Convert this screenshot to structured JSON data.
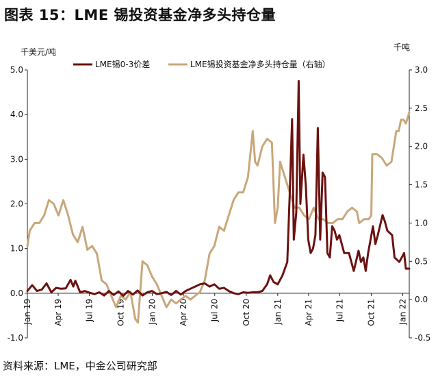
{
  "figure": {
    "title": "图表 15：LME 锡投资基金净多头持仓量",
    "source": "资料来源：LME，中金公司研究部"
  },
  "chart_data": {
    "type": "line",
    "left_unit": "千美元/吨",
    "right_unit": "千吨",
    "left_ylim": [
      -1.0,
      5.0
    ],
    "right_ylim": [
      -0.5,
      3.0
    ],
    "left_ticks": [
      "-1.0",
      "0.0",
      "1.0",
      "2.0",
      "3.0",
      "4.0",
      "5.0"
    ],
    "right_ticks": [
      "-0.5",
      "0.0",
      "0.5",
      "1.0",
      "1.5",
      "2.0",
      "2.5",
      "3.0"
    ],
    "x_ticks": [
      "Jan 19",
      "Apr 19",
      "Jul 19",
      "Oct 19",
      "Jan 20",
      "Apr 20",
      "Jul 20",
      "Oct 20",
      "Jan 21",
      "Apr 21",
      "Jul 21",
      "Oct 21",
      "Jan 22"
    ],
    "x_range": [
      "2019-01-01",
      "2022-01-20"
    ],
    "legend_position": "top",
    "series": [
      {
        "name": "LME锡0-3价差",
        "axis": "left",
        "color": "#6b1210",
        "points": [
          [
            "2019-01-01",
            0.05
          ],
          [
            "2019-01-15",
            0.18
          ],
          [
            "2019-01-29",
            0.05
          ],
          [
            "2019-02-12",
            0.08
          ],
          [
            "2019-02-26",
            0.22
          ],
          [
            "2019-03-12",
            0.02
          ],
          [
            "2019-03-26",
            0.12
          ],
          [
            "2019-04-09",
            0.1
          ],
          [
            "2019-04-23",
            0.11
          ],
          [
            "2019-05-07",
            0.3
          ],
          [
            "2019-05-15",
            0.15
          ],
          [
            "2019-05-21",
            0.28
          ],
          [
            "2019-06-04",
            0.02
          ],
          [
            "2019-06-18",
            0.05
          ],
          [
            "2019-07-02",
            0.01
          ],
          [
            "2019-07-16",
            -0.02
          ],
          [
            "2019-07-30",
            0.02
          ],
          [
            "2019-08-13",
            -0.05
          ],
          [
            "2019-08-27",
            0.05
          ],
          [
            "2019-09-10",
            -0.04
          ],
          [
            "2019-09-24",
            0.04
          ],
          [
            "2019-10-08",
            -0.06
          ],
          [
            "2019-10-22",
            0.05
          ],
          [
            "2019-11-05",
            -0.03
          ],
          [
            "2019-11-19",
            0.06
          ],
          [
            "2019-12-03",
            -0.05
          ],
          [
            "2019-12-17",
            0.02
          ],
          [
            "2019-12-31",
            0.05
          ],
          [
            "2020-01-14",
            -0.02
          ],
          [
            "2020-01-28",
            0.0
          ],
          [
            "2020-02-11",
            0.03
          ],
          [
            "2020-02-25",
            -0.04
          ],
          [
            "2020-03-10",
            0.05
          ],
          [
            "2020-03-24",
            -0.03
          ],
          [
            "2020-04-07",
            0.05
          ],
          [
            "2020-04-21",
            0.1
          ],
          [
            "2020-05-05",
            0.15
          ],
          [
            "2020-05-19",
            0.2
          ],
          [
            "2020-06-02",
            0.22
          ],
          [
            "2020-06-16",
            0.15
          ],
          [
            "2020-06-30",
            0.2
          ],
          [
            "2020-07-14",
            0.1
          ],
          [
            "2020-07-28",
            0.12
          ],
          [
            "2020-08-11",
            0.05
          ],
          [
            "2020-08-25",
            0.0
          ],
          [
            "2020-09-08",
            -0.02
          ],
          [
            "2020-09-22",
            0.02
          ],
          [
            "2020-10-06",
            0.01
          ],
          [
            "2020-10-20",
            0.02
          ],
          [
            "2020-11-03",
            0.02
          ],
          [
            "2020-11-17",
            0.05
          ],
          [
            "2020-12-01",
            0.2
          ],
          [
            "2020-12-10",
            0.4
          ],
          [
            "2020-12-20",
            0.25
          ],
          [
            "2021-01-01",
            0.2
          ],
          [
            "2021-01-15",
            0.4
          ],
          [
            "2021-01-29",
            0.7
          ],
          [
            "2021-02-05",
            2.2
          ],
          [
            "2021-02-12",
            3.9
          ],
          [
            "2021-02-17",
            1.2
          ],
          [
            "2021-02-24",
            1.8
          ],
          [
            "2021-03-03",
            4.75
          ],
          [
            "2021-03-08",
            2.0
          ],
          [
            "2021-03-17",
            3.1
          ],
          [
            "2021-03-24",
            2.4
          ],
          [
            "2021-03-31",
            1.2
          ],
          [
            "2021-04-07",
            0.9
          ],
          [
            "2021-04-14",
            1.0
          ],
          [
            "2021-04-21",
            1.3
          ],
          [
            "2021-04-28",
            3.7
          ],
          [
            "2021-05-05",
            1.2
          ],
          [
            "2021-05-12",
            2.7
          ],
          [
            "2021-05-19",
            2.6
          ],
          [
            "2021-05-26",
            0.9
          ],
          [
            "2021-06-02",
            0.8
          ],
          [
            "2021-06-09",
            1.5
          ],
          [
            "2021-06-16",
            1.4
          ],
          [
            "2021-06-23",
            1.2
          ],
          [
            "2021-06-30",
            1.3
          ],
          [
            "2021-07-14",
            0.9
          ],
          [
            "2021-07-28",
            0.9
          ],
          [
            "2021-08-11",
            0.5
          ],
          [
            "2021-08-25",
            0.95
          ],
          [
            "2021-09-01",
            0.7
          ],
          [
            "2021-09-08",
            0.8
          ],
          [
            "2021-09-15",
            0.5
          ],
          [
            "2021-09-22",
            0.9
          ],
          [
            "2021-10-06",
            1.5
          ],
          [
            "2021-10-13",
            1.1
          ],
          [
            "2021-10-20",
            1.3
          ],
          [
            "2021-11-03",
            1.75
          ],
          [
            "2021-11-10",
            1.6
          ],
          [
            "2021-11-17",
            1.4
          ],
          [
            "2021-12-01",
            1.3
          ],
          [
            "2021-12-08",
            0.8
          ],
          [
            "2021-12-22",
            0.7
          ],
          [
            "2022-01-05",
            0.9
          ],
          [
            "2022-01-10",
            0.55
          ],
          [
            "2022-01-20",
            0.55
          ]
        ]
      },
      {
        "name": "LME锡投资基金净多头持仓量（右轴）",
        "axis": "right",
        "color": "#c9a77a",
        "points": [
          [
            "2019-01-01",
            0.7
          ],
          [
            "2019-01-08",
            0.9
          ],
          [
            "2019-01-22",
            1.0
          ],
          [
            "2019-02-05",
            1.0
          ],
          [
            "2019-02-19",
            1.1
          ],
          [
            "2019-03-05",
            1.3
          ],
          [
            "2019-03-19",
            1.25
          ],
          [
            "2019-04-02",
            1.1
          ],
          [
            "2019-04-16",
            1.3
          ],
          [
            "2019-04-30",
            1.1
          ],
          [
            "2019-05-14",
            0.85
          ],
          [
            "2019-05-28",
            0.75
          ],
          [
            "2019-06-11",
            0.95
          ],
          [
            "2019-06-25",
            0.65
          ],
          [
            "2019-07-09",
            0.7
          ],
          [
            "2019-07-23",
            0.6
          ],
          [
            "2019-08-06",
            0.25
          ],
          [
            "2019-08-20",
            0.2
          ],
          [
            "2019-09-03",
            0.05
          ],
          [
            "2019-09-17",
            -0.1
          ],
          [
            "2019-10-01",
            0.05
          ],
          [
            "2019-10-15",
            0.0
          ],
          [
            "2019-10-29",
            0.1
          ],
          [
            "2019-11-12",
            -0.25
          ],
          [
            "2019-11-20",
            -0.3
          ],
          [
            "2019-12-03",
            0.5
          ],
          [
            "2019-12-17",
            0.45
          ],
          [
            "2019-12-31",
            0.3
          ],
          [
            "2020-01-14",
            0.2
          ],
          [
            "2020-01-28",
            0.05
          ],
          [
            "2020-02-11",
            -0.1
          ],
          [
            "2020-02-25",
            0.0
          ],
          [
            "2020-03-10",
            -0.05
          ],
          [
            "2020-03-24",
            0.0
          ],
          [
            "2020-04-07",
            0.05
          ],
          [
            "2020-04-21",
            0.0
          ],
          [
            "2020-05-05",
            0.05
          ],
          [
            "2020-05-19",
            0.1
          ],
          [
            "2020-06-02",
            0.25
          ],
          [
            "2020-06-16",
            0.6
          ],
          [
            "2020-06-30",
            0.7
          ],
          [
            "2020-07-14",
            0.95
          ],
          [
            "2020-07-28",
            0.9
          ],
          [
            "2020-08-11",
            1.1
          ],
          [
            "2020-08-25",
            1.3
          ],
          [
            "2020-09-08",
            1.4
          ],
          [
            "2020-09-22",
            1.4
          ],
          [
            "2020-10-06",
            1.6
          ],
          [
            "2020-10-20",
            2.2
          ],
          [
            "2020-10-27",
            1.8
          ],
          [
            "2020-11-03",
            1.75
          ],
          [
            "2020-11-17",
            2.0
          ],
          [
            "2020-12-01",
            2.1
          ],
          [
            "2020-12-15",
            2.05
          ],
          [
            "2020-12-24",
            1.0
          ],
          [
            "2021-01-01",
            1.2
          ],
          [
            "2021-01-08",
            1.8
          ],
          [
            "2021-01-22",
            1.6
          ],
          [
            "2021-02-05",
            1.4
          ],
          [
            "2021-02-19",
            1.2
          ],
          [
            "2021-03-05",
            1.2
          ],
          [
            "2021-03-19",
            1.1
          ],
          [
            "2021-04-02",
            1.05
          ],
          [
            "2021-04-16",
            1.2
          ],
          [
            "2021-04-30",
            1.05
          ],
          [
            "2021-05-14",
            1.05
          ],
          [
            "2021-05-28",
            1.0
          ],
          [
            "2021-06-11",
            1.0
          ],
          [
            "2021-06-25",
            1.05
          ],
          [
            "2021-07-09",
            1.05
          ],
          [
            "2021-07-23",
            1.15
          ],
          [
            "2021-08-06",
            1.2
          ],
          [
            "2021-08-20",
            1.15
          ],
          [
            "2021-08-27",
            1.0
          ],
          [
            "2021-09-10",
            1.05
          ],
          [
            "2021-09-24",
            1.05
          ],
          [
            "2021-10-01",
            1.1
          ],
          [
            "2021-10-04",
            1.9
          ],
          [
            "2021-10-18",
            1.9
          ],
          [
            "2021-11-01",
            1.85
          ],
          [
            "2021-11-15",
            1.75
          ],
          [
            "2021-11-29",
            1.8
          ],
          [
            "2021-12-06",
            2.0
          ],
          [
            "2021-12-13",
            2.2
          ],
          [
            "2021-12-20",
            2.2
          ],
          [
            "2021-12-27",
            2.35
          ],
          [
            "2022-01-03",
            2.35
          ],
          [
            "2022-01-10",
            2.3
          ],
          [
            "2022-01-17",
            2.4
          ],
          [
            "2022-01-20",
            2.45
          ]
        ]
      }
    ]
  }
}
